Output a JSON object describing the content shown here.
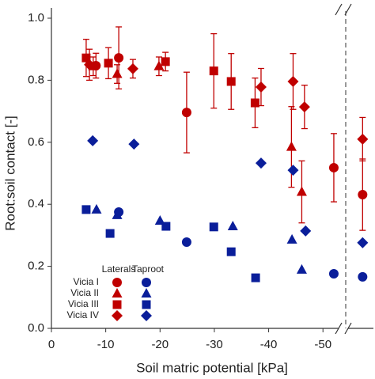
{
  "chart_data": {
    "type": "scatter",
    "x_label": "Soil matric potential [kPa]",
    "y_label": "Root:soil contact [-]",
    "xlim": [
      0,
      -59
    ],
    "xticks": [
      0,
      -10,
      -20,
      -30,
      -40,
      -50
    ],
    "ylim": [
      0,
      1
    ],
    "yticks": [
      {
        "value": 0,
        "label": "0.0"
      },
      0.2,
      0.4,
      0.6,
      0.8,
      {
        "value": 1,
        "label": "1.0"
      }
    ],
    "groups": [
      {
        "name": "Laterals",
        "color": "#c00000"
      },
      {
        "name": "Taproot",
        "color": "#0a1e9a"
      }
    ],
    "series": [
      {
        "name": "Vicia I",
        "marker": "circle",
        "groups": [
          {
            "x": [
              -8.2,
              -12.4,
              -24.9,
              -52,
              -57.3
            ],
            "values": [
              0.847,
              0.872,
              0.696,
              0.518,
              0.431
            ],
            "errors": [
              0.04,
              0.1,
              0.13,
              0.11,
              0.115
            ]
          },
          {
            "x": [
              -12.4,
              -24.9,
              -52,
              -57.3
            ],
            "values": [
              0.375,
              0.278,
              0.176,
              0.166
            ]
          }
        ]
      },
      {
        "name": "Vicia II",
        "marker": "triangle",
        "groups": [
          {
            "x": [
              -7.7,
              -12.1,
              -19.8,
              -44.2,
              -46.1
            ],
            "values": [
              0.845,
              0.82,
              0.845,
              0.585,
              0.44
            ],
            "errors": [
              0.03,
              0.03,
              0.03,
              0.13,
              0.1
            ]
          },
          {
            "x": [
              -8.3,
              -12.1,
              -20,
              -33.4,
              -44.3,
              -46.1
            ],
            "values": [
              0.383,
              0.365,
              0.347,
              0.329,
              0.286,
              0.189
            ]
          }
        ]
      },
      {
        "name": "Vicia III",
        "marker": "square",
        "groups": [
          {
            "x": [
              -6.4,
              -10.5,
              -21,
              -29.9,
              -33.1,
              -37.5
            ],
            "values": [
              0.872,
              0.855,
              0.86,
              0.83,
              0.796,
              0.727
            ],
            "errors": [
              0.06,
              0.05,
              0.03,
              0.12,
              0.09,
              0.08
            ]
          },
          {
            "x": [
              -6.4,
              -10.8,
              -21.1,
              -29.9,
              -33.1,
              -37.6
            ],
            "values": [
              0.383,
              0.306,
              0.329,
              0.327,
              0.247,
              0.163
            ]
          }
        ]
      },
      {
        "name": "Vicia IV",
        "marker": "diamond",
        "groups": [
          {
            "x": [
              -7,
              -15,
              -38.6,
              -44.5,
              -46.6,
              -57.3
            ],
            "values": [
              0.85,
              0.837,
              0.778,
              0.796,
              0.714,
              0.61
            ],
            "errors": [
              0.05,
              0.03,
              0.06,
              0.09,
              0.07,
              0.07
            ]
          },
          {
            "x": [
              -7.6,
              -15.2,
              -38.6,
              -44.5,
              -46.8,
              -57.3
            ],
            "values": [
              0.605,
              0.594,
              0.533,
              0.51,
              0.314,
              0.276
            ]
          }
        ]
      }
    ]
  }
}
